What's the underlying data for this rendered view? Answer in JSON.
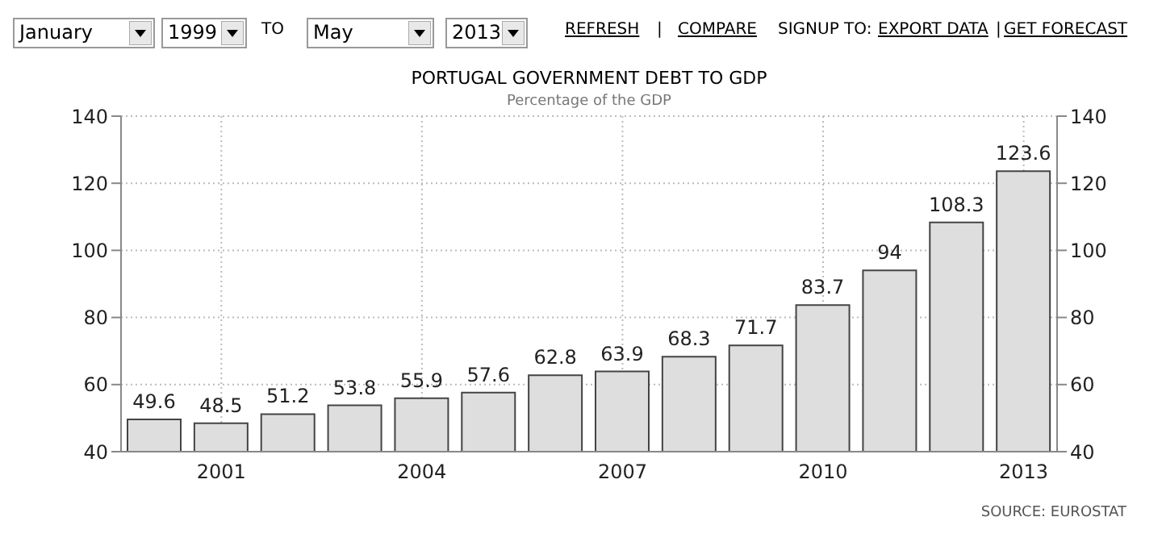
{
  "chart_data": {
    "type": "bar",
    "title": "PORTUGAL GOVERNMENT DEBT TO GDP",
    "subtitle": "Percentage of the GDP",
    "categories": [
      null,
      "2001",
      null,
      null,
      "2004",
      null,
      null,
      "2007",
      null,
      null,
      "2010",
      null,
      null,
      "2013"
    ],
    "values": [
      49.6,
      48.5,
      51.2,
      53.8,
      55.9,
      57.6,
      62.8,
      63.9,
      68.3,
      71.7,
      83.7,
      94,
      108.3,
      123.6
    ],
    "color": "#dedede",
    "data_labels": true,
    "ylim": [
      40,
      140
    ],
    "yticks": [
      40,
      60,
      80,
      100,
      120,
      140
    ],
    "y2lim": [
      40,
      140
    ],
    "y2ticks": [
      40,
      60,
      80,
      100,
      120,
      140
    ],
    "grid": true,
    "annotations": [
      "January",
      "1999",
      "TO",
      "May",
      "2013",
      "REFRESH",
      "|",
      "COMPARE",
      "SIGNUP TO:",
      "EXPORT DATA",
      "|",
      "GET FORECAST",
      "SOURCE: EUROSTAT"
    ]
  }
}
